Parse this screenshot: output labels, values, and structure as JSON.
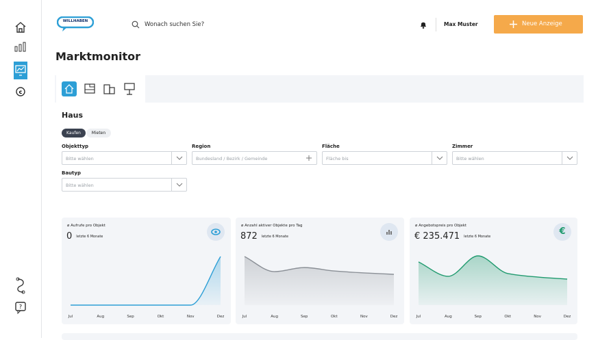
{
  "header": {
    "logo": "WILLHABEN",
    "search_placeholder": "Wonach suchen Sie?",
    "user": "Max Muster",
    "new_ad_button": "Neue Anzeige"
  },
  "page_title": "Marktmonitor",
  "section_title": "Haus",
  "toggle": [
    "Kaufen",
    "Mieten"
  ],
  "filters": [
    {
      "label": "Objekttyp",
      "placeholder": "Bitte wählen"
    },
    {
      "label": "Region",
      "placeholder": "Bundesland / Bezirk / Gemeinde"
    },
    {
      "label": "Fläche",
      "placeholder": "Fläche bis"
    },
    {
      "label": "Zimmer",
      "placeholder": "Bitte wählen"
    },
    {
      "label": "Bautyp",
      "placeholder": "Bitte wählen"
    }
  ],
  "kpis": [
    {
      "title": "ø Aufrufe pro Objekt",
      "value": "0",
      "period": "letzte 6 Monate",
      "chart": {
        "type": "area",
        "categories": [
          "Jul",
          "Aug",
          "Sep",
          "Okt",
          "Nov",
          "Dez"
        ],
        "values": [
          0,
          0,
          0,
          0,
          0,
          100
        ],
        "color": "#2d9fd6"
      }
    },
    {
      "title": "ø Anzahl aktiver Objekte pro Tag",
      "value": "872",
      "period": "letzte 6 Monate",
      "chart": {
        "type": "area",
        "categories": [
          "Jul",
          "Aug",
          "Sep",
          "Okt",
          "Nov",
          "Dez"
        ],
        "values": [
          100,
          15,
          38,
          19,
          8,
          0
        ],
        "color": "#8a8f96"
      }
    },
    {
      "title": "ø Angebotspreis pro Objekt",
      "value": "€ 235.471",
      "period": "letzte 6 Monate",
      "icon": "€",
      "chart": {
        "type": "area",
        "categories": [
          "Jul",
          "Aug",
          "Sep",
          "Okt",
          "Nov",
          "Dez"
        ],
        "values": [
          74,
          12,
          100,
          24,
          9,
          0
        ],
        "color": "#1f9a6e"
      }
    }
  ]
}
